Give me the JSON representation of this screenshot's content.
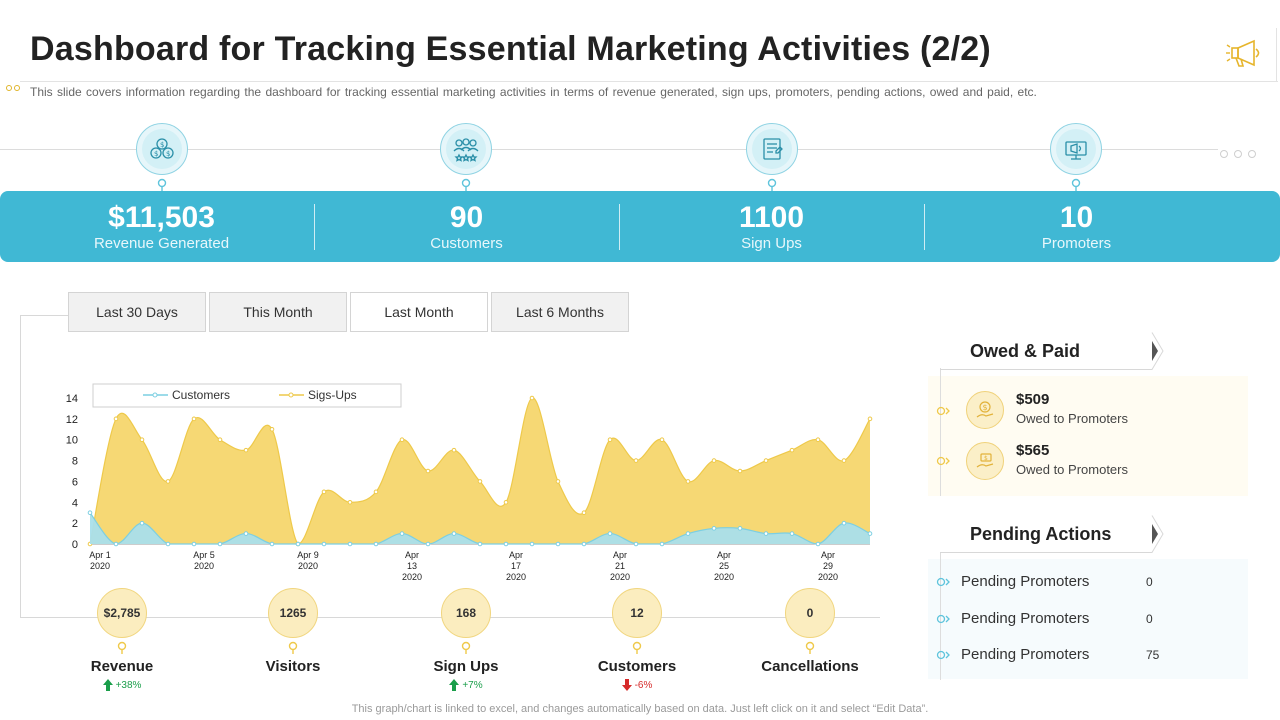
{
  "header": {
    "title": "Dashboard for Tracking Essential Marketing Activities (2/2)",
    "subtitle": "This slide covers information regarding the dashboard for tracking essential marketing activities in terms of revenue  generated, sign ups, promoters, pending actions, owed and paid, etc."
  },
  "kpis": [
    {
      "value": "$11,503",
      "label": "Revenue Generated",
      "icon": "coins-gear-icon"
    },
    {
      "value": "90",
      "label": "Customers",
      "icon": "customers-group-icon"
    },
    {
      "value": "1100",
      "label": "Sign Ups",
      "icon": "signup-form-icon"
    },
    {
      "value": "10",
      "label": "Promoters",
      "icon": "promoter-megaphone-icon"
    }
  ],
  "tabs": [
    {
      "label": "Last 30 Days",
      "active": false
    },
    {
      "label": "This Month",
      "active": false
    },
    {
      "label": "Last Month",
      "active": true
    },
    {
      "label": "Last 6 Months",
      "active": false
    }
  ],
  "metrics": [
    {
      "value": "$2,785",
      "name": "Revenue",
      "delta": "+38%",
      "trend": "up"
    },
    {
      "value": "1265",
      "name": "Visitors",
      "delta": "",
      "trend": ""
    },
    {
      "value": "168",
      "name": "Sign Ups",
      "delta": "+7%",
      "trend": "up"
    },
    {
      "value": "12",
      "name": "Customers",
      "delta": "-6%",
      "trend": "down"
    },
    {
      "value": "0",
      "name": "Cancellations",
      "delta": "",
      "trend": ""
    }
  ],
  "owed_paid": {
    "title": "Owed & Paid",
    "items": [
      {
        "amount": "$509",
        "label": "Owed to Promoters"
      },
      {
        "amount": "$565",
        "label": "Owed to Promoters"
      }
    ]
  },
  "pending_actions": {
    "title": "Pending Actions",
    "items": [
      {
        "label": "Pending Promoters",
        "value": "0"
      },
      {
        "label": "Pending Promoters",
        "value": "0"
      },
      {
        "label": "Pending Promoters",
        "value": "75"
      }
    ]
  },
  "footer_note": "This graph/chart is linked to excel, and changes automatically based on data. Just left click on it and select “Edit Data”.",
  "colors": {
    "band": "#40b8d4",
    "signups_fill": "#f6d66d",
    "signups_line": "#eec94a",
    "customers_fill": "#a9dfeb",
    "customers_line": "#7ccfe2",
    "up": "#1a9e4a",
    "down": "#d62a2a"
  },
  "chart_data": {
    "type": "area",
    "title": "",
    "xlabel": "",
    "ylabel": "",
    "ylim": [
      0,
      14
    ],
    "yticks": [
      0,
      2,
      4,
      6,
      8,
      10,
      12,
      14
    ],
    "x_tick_labels": [
      "Apr 1 2020",
      "Apr 5 2020",
      "Apr 9 2020",
      "Apr 13 2020",
      "Apr 17 2020",
      "Apr 21 2020",
      "Apr 25 2020",
      "Apr 29 2020"
    ],
    "x_count": 31,
    "legend": [
      "Customers",
      "Sigs-Ups"
    ],
    "series": [
      {
        "name": "Sigs-Ups",
        "values": [
          0,
          12,
          10,
          6,
          12,
          10,
          9,
          11,
          0,
          5,
          4,
          5,
          10,
          7,
          9,
          6,
          4,
          14,
          6,
          3,
          10,
          8,
          10,
          6,
          8,
          7,
          8,
          9,
          10,
          8,
          12
        ]
      },
      {
        "name": "Customers",
        "values": [
          3,
          0,
          2,
          0,
          0,
          0,
          1,
          0,
          0,
          0,
          0,
          0,
          1,
          0,
          1,
          0,
          0,
          0,
          0,
          0,
          1,
          0,
          0,
          1,
          1.5,
          1.5,
          1,
          1,
          0,
          2,
          1
        ]
      }
    ]
  }
}
